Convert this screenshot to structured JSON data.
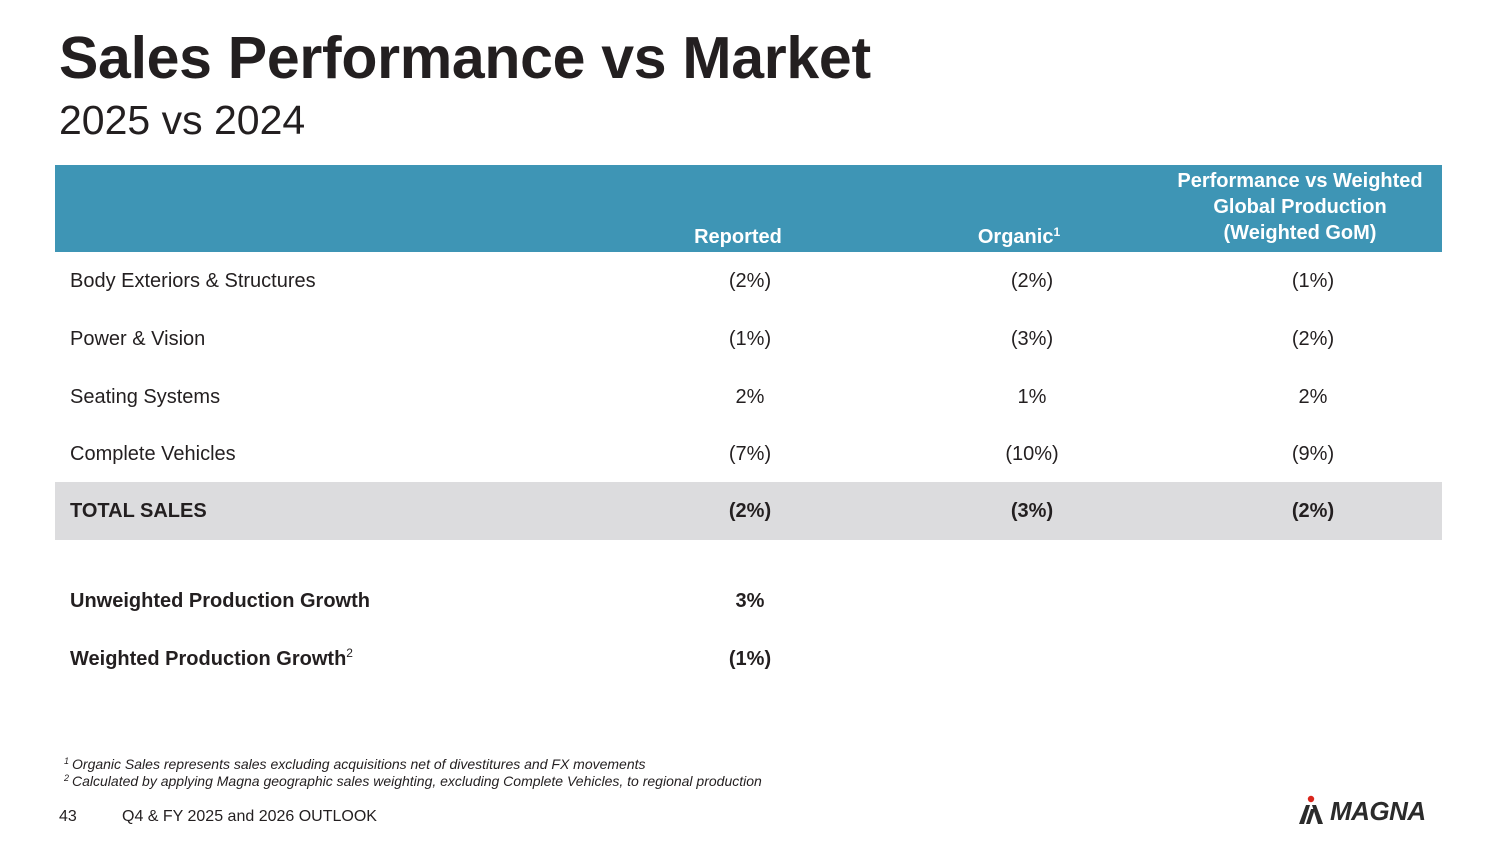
{
  "header": {
    "title": "Sales Performance vs Market",
    "subtitle": "2025 vs 2024"
  },
  "table": {
    "columns": {
      "reported": "Reported",
      "organic": "Organic",
      "organic_footnote": "1",
      "performance_line1": "Performance vs Weighted",
      "performance_line2": "Global Production",
      "performance_line3": "(Weighted GoM)"
    },
    "rows": [
      {
        "label": "Body Exteriors & Structures",
        "reported": "(2%)",
        "organic": "(2%)",
        "performance": "(1%)"
      },
      {
        "label": "Power & Vision",
        "reported": "(1%)",
        "organic": "(3%)",
        "performance": "(2%)"
      },
      {
        "label": "Seating Systems",
        "reported": "2%",
        "organic": "1%",
        "performance": "2%"
      },
      {
        "label": "Complete Vehicles",
        "reported": "(7%)",
        "organic": "(10%)",
        "performance": "(9%)"
      }
    ],
    "total": {
      "label": "TOTAL SALES",
      "reported": "(2%)",
      "organic": "(3%)",
      "performance": "(2%)"
    }
  },
  "production": [
    {
      "label": "Unweighted Production Growth",
      "footnote": "",
      "value": "3%"
    },
    {
      "label": "Weighted Production Growth",
      "footnote": "2",
      "value": "(1%)"
    }
  ],
  "footnotes": [
    {
      "marker": "1",
      "text": "Organic Sales represents sales excluding acquisitions net of divestitures and FX movements"
    },
    {
      "marker": "2",
      "text": "Calculated by applying Magna geographic sales weighting, excluding Complete Vehicles, to regional production"
    }
  ],
  "footer": {
    "page_number": "43",
    "presentation_title": "Q4 & FY 2025 and 2026 OUTLOOK",
    "logo_text": "MAGNA"
  },
  "colors": {
    "header_bg": "#3e95b5",
    "total_row_bg": "#dcdcde",
    "logo_accent": "#d9261c"
  }
}
